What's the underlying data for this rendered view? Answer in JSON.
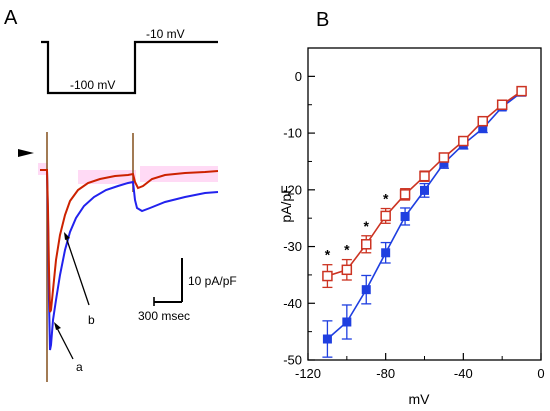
{
  "panels": {
    "a_letter": "A",
    "b_letter": "B"
  },
  "protocol": {
    "holding_label": "-10 mV",
    "step_label": "-100 mV"
  },
  "traces": {
    "label_a": "a",
    "label_b": "b",
    "scalebar_y_label": "10 pA/pF",
    "scalebar_x_label": "300 msec",
    "colors": {
      "a": "#2222ee",
      "b": "#cc2200"
    }
  },
  "chart_data": {
    "type": "line",
    "xlabel": "mV",
    "ylabel": "pA/pF",
    "xlim": [
      -120,
      0
    ],
    "ylim": [
      -50,
      5
    ],
    "xticks": [
      -120,
      -80,
      -40,
      0
    ],
    "yticks": [
      0,
      -10,
      -20,
      -30,
      -40,
      -50
    ],
    "series": [
      {
        "color": "#1f3fe0",
        "marker": "filled-square",
        "x": [
          -110,
          -100,
          -90,
          -80,
          -70,
          -60,
          -50,
          -40,
          -30,
          -20,
          -10
        ],
        "y": [
          -46.3,
          -43.3,
          -37.6,
          -31.1,
          -24.7,
          -20.1,
          -15.3,
          -12.0,
          -9.2,
          -5.4,
          -2.8
        ],
        "err": [
          3.2,
          3.0,
          2.5,
          1.8,
          1.5,
          1.2,
          0.9,
          0.8,
          0.7,
          0.5,
          0.5
        ]
      },
      {
        "color": "#cc3322",
        "marker": "open-square",
        "x": [
          -110,
          -100,
          -90,
          -80,
          -70,
          -60,
          -50,
          -40,
          -30,
          -20,
          -10
        ],
        "y": [
          -35.2,
          -34.1,
          -29.6,
          -24.6,
          -20.8,
          -17.6,
          -14.3,
          -11.4,
          -7.9,
          -5.0,
          -2.6
        ],
        "err": [
          2.0,
          1.8,
          1.5,
          1.3,
          1.0,
          0.9,
          0.7,
          0.6,
          0.6,
          0.5,
          0.4
        ]
      }
    ],
    "significance": [
      {
        "x": -110,
        "text": "*"
      },
      {
        "x": -100,
        "text": "*"
      },
      {
        "x": -90,
        "text": "*"
      },
      {
        "x": -80,
        "text": "*"
      }
    ]
  }
}
